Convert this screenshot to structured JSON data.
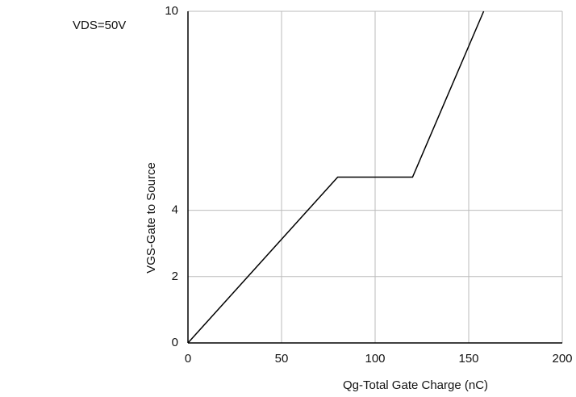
{
  "chart_data": {
    "type": "line",
    "annotation": "VDS=50V",
    "x_label": "Qg-Total Gate Charge (nC)",
    "y_label": "VGS-Gate to Source",
    "x": [
      0,
      80,
      120,
      158
    ],
    "series": [
      {
        "name": "VGS",
        "color": "#000000",
        "values": [
          0,
          5,
          5,
          10
        ]
      }
    ],
    "xlim": [
      0,
      200
    ],
    "xticks": [
      0,
      50,
      100,
      150,
      200
    ],
    "ylim": [
      0,
      10
    ],
    "yticks": [
      0,
      2,
      4,
      10
    ],
    "grid": true
  }
}
